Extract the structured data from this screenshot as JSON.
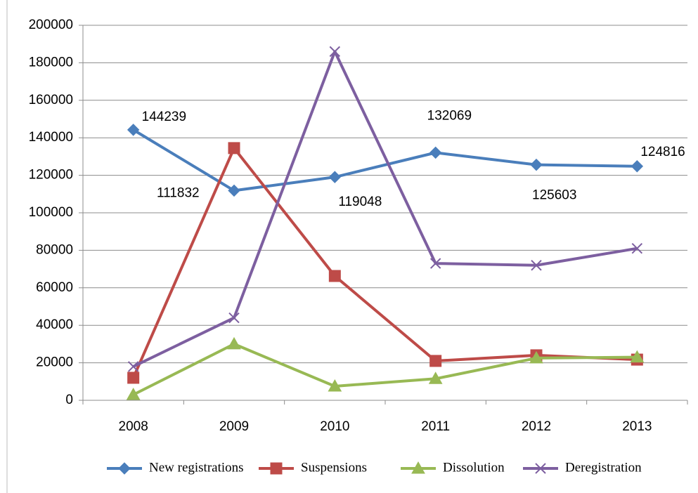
{
  "chart_data": {
    "type": "line",
    "categories": [
      "2008",
      "2009",
      "2010",
      "2011",
      "2012",
      "2013"
    ],
    "series": [
      {
        "name": "New registrations",
        "color": "#4a7ebb",
        "marker": "diamond",
        "values": [
          144239,
          111832,
          119048,
          132069,
          125603,
          124816
        ],
        "data_labels": true
      },
      {
        "name": "Suspensions",
        "color": "#be4b48",
        "marker": "square",
        "values": [
          12000,
          134500,
          66300,
          21000,
          24000,
          21700
        ]
      },
      {
        "name": "Dissolution",
        "color": "#98b954",
        "marker": "triangle",
        "values": [
          3000,
          30000,
          7500,
          11500,
          22500,
          23000
        ]
      },
      {
        "name": "Deregistration",
        "color": "#7d5fa0",
        "marker": "x",
        "values": [
          18000,
          44000,
          186000,
          73000,
          72000,
          81000
        ]
      }
    ],
    "ylim": [
      0,
      200000
    ],
    "yticks": [
      0,
      20000,
      40000,
      60000,
      80000,
      100000,
      120000,
      140000,
      160000,
      180000,
      200000
    ],
    "grid": true,
    "legend": "bottom"
  }
}
